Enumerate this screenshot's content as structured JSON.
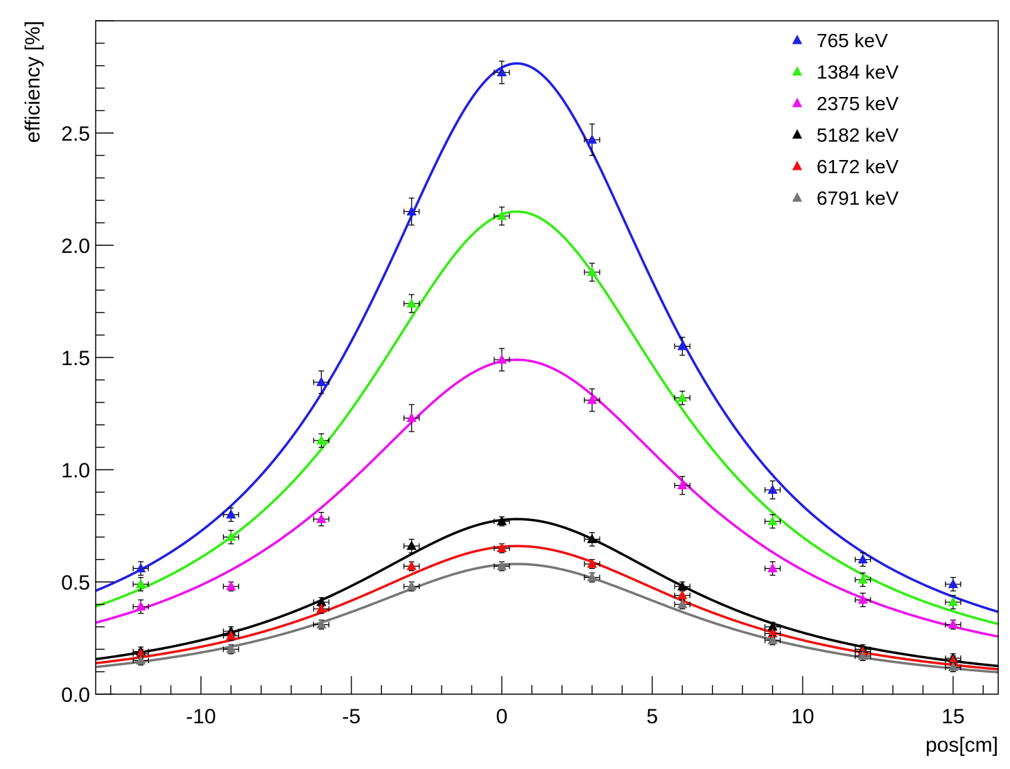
{
  "chart_data": {
    "type": "scatter",
    "title": "",
    "xlabel": "pos[cm]",
    "ylabel": "efficiency [%]",
    "xlim": [
      -13.5,
      16.5
    ],
    "ylim": [
      0,
      3.0
    ],
    "x_major_ticks": [
      -10,
      -5,
      0,
      5,
      10,
      15
    ],
    "x_tick_labels": [
      "-10",
      "-5",
      "0",
      "5",
      "10",
      "15"
    ],
    "y_major_ticks": [
      0.0,
      0.5,
      1.0,
      1.5,
      2.0,
      2.5
    ],
    "y_tick_labels": [
      "0.0",
      "0.5",
      "1.0",
      "1.5",
      "2.0",
      "2.5"
    ],
    "x": [
      -12,
      -9,
      -6,
      -3,
      0,
      3,
      6,
      9,
      12,
      15
    ],
    "legend_position": "top-right",
    "grid": false,
    "series": [
      {
        "name": "765 keV",
        "color": "#1f1fe6",
        "values": [
          0.56,
          0.8,
          1.39,
          2.15,
          2.77,
          2.47,
          1.55,
          0.91,
          0.6,
          0.49
        ],
        "errors": [
          0.03,
          0.03,
          0.05,
          0.06,
          0.05,
          0.07,
          0.04,
          0.04,
          0.03,
          0.03
        ],
        "fit": {
          "amplitude": 2.81,
          "center": 0.5,
          "gamma": 6.2
        }
      },
      {
        "name": "1384 keV",
        "color": "#33ee11",
        "values": [
          0.49,
          0.7,
          1.13,
          1.74,
          2.13,
          1.88,
          1.32,
          0.77,
          0.51,
          0.41
        ],
        "errors": [
          0.03,
          0.03,
          0.03,
          0.04,
          0.04,
          0.04,
          0.03,
          0.03,
          0.03,
          0.03
        ],
        "fit": {
          "amplitude": 2.15,
          "center": 0.5,
          "gamma": 6.6
        }
      },
      {
        "name": "2375 keV",
        "color": "#ee11ee",
        "values": [
          0.39,
          0.48,
          0.78,
          1.23,
          1.49,
          1.31,
          0.93,
          0.56,
          0.42,
          0.31
        ],
        "errors": [
          0.03,
          0.02,
          0.03,
          0.06,
          0.05,
          0.05,
          0.04,
          0.03,
          0.03,
          0.02
        ],
        "fit": {
          "amplitude": 1.49,
          "center": 0.5,
          "gamma": 7.3
        }
      },
      {
        "name": "5182 keV",
        "color": "#000000",
        "values": [
          0.19,
          0.28,
          0.41,
          0.66,
          0.77,
          0.69,
          0.48,
          0.3,
          0.2,
          0.16
        ],
        "errors": [
          0.02,
          0.02,
          0.02,
          0.03,
          0.02,
          0.03,
          0.02,
          0.02,
          0.02,
          0.02
        ],
        "fit": {
          "amplitude": 0.78,
          "center": 0.5,
          "gamma": 7.0
        }
      },
      {
        "name": "6172 keV",
        "color": "#ee1111",
        "values": [
          0.18,
          0.26,
          0.38,
          0.57,
          0.65,
          0.58,
          0.44,
          0.27,
          0.19,
          0.15
        ],
        "errors": [
          0.02,
          0.02,
          0.02,
          0.02,
          0.02,
          0.02,
          0.02,
          0.02,
          0.02,
          0.02
        ],
        "fit": {
          "amplitude": 0.66,
          "center": 0.5,
          "gamma": 7.2
        }
      },
      {
        "name": "6791 keV",
        "color": "#777777",
        "values": [
          0.15,
          0.2,
          0.31,
          0.48,
          0.57,
          0.52,
          0.4,
          0.24,
          0.17,
          0.12
        ],
        "errors": [
          0.02,
          0.02,
          0.02,
          0.02,
          0.02,
          0.02,
          0.02,
          0.02,
          0.02,
          0.02
        ],
        "fit": {
          "amplitude": 0.58,
          "center": 0.5,
          "gamma": 7.2
        }
      }
    ]
  }
}
